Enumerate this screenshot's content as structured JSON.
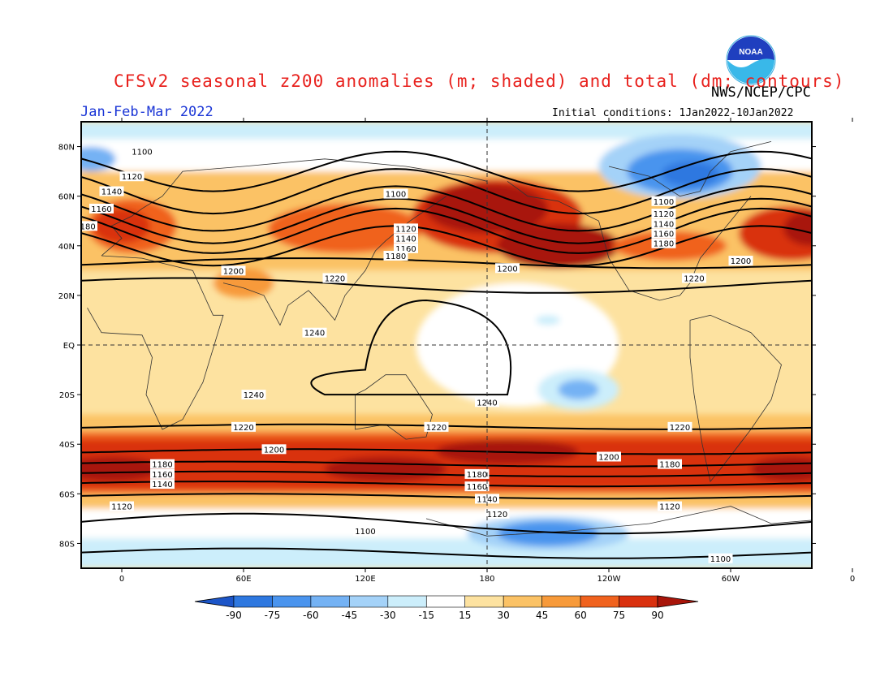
{
  "title": "CFSv2 seasonal z200 anomalies (m; shaded) and total (dm; contours)",
  "agency": "NWS/NCEP/CPC",
  "period": "Jan-Feb-Mar 2022",
  "initial_conditions": "Initial conditions: 1Jan2022-10Jan2022",
  "logo_text": "NOAA",
  "lat_labels": [
    "80N",
    "60N",
    "40N",
    "20N",
    "EQ",
    "20S",
    "40S",
    "60S",
    "80S"
  ],
  "lon_labels": [
    "0",
    "60E",
    "120E",
    "180",
    "120W",
    "60W",
    "0"
  ],
  "colorbar": {
    "ticks": [
      "-90",
      "-75",
      "-60",
      "-45",
      "-30",
      "-15",
      "15",
      "30",
      "45",
      "60",
      "75",
      "90"
    ],
    "colors": [
      "#1c55c8",
      "#2e78e0",
      "#4a94ee",
      "#74b2f4",
      "#a4d2f8",
      "#cceefb",
      "#ffffff",
      "#fde2a0",
      "#fbc265",
      "#f79a3a",
      "#f0621e",
      "#d9300e",
      "#a8150a"
    ]
  },
  "contour_labels": [
    "1100",
    "1120",
    "1140",
    "1160",
    "1180",
    "1200",
    "1220",
    "1240"
  ],
  "chart_data": {
    "type": "map",
    "variable": "z200",
    "shading": "anomalies (m)",
    "contours": "total (dm)",
    "contour_levels_dm": [
      1100,
      1120,
      1140,
      1160,
      1180,
      1200,
      1220,
      1240
    ],
    "anomaly_levels_m": [
      -90,
      -75,
      -60,
      -45,
      -30,
      -15,
      15,
      30,
      45,
      60,
      75,
      90
    ],
    "lat_range": [
      -90,
      90
    ],
    "lon_range": [
      -20,
      340
    ],
    "features": [
      {
        "label": "positive",
        "lon": -5,
        "lat": 48,
        "anom": 80
      },
      {
        "label": "positive",
        "lon": 175,
        "lat": 52,
        "anom": 85
      },
      {
        "label": "positive",
        "lon": 210,
        "lat": 40,
        "anom": 80
      },
      {
        "label": "positive",
        "lon": 325,
        "lat": 45,
        "anom": 80
      },
      {
        "label": "positive",
        "lon": 190,
        "lat": -43,
        "anom": 80
      },
      {
        "label": "positive",
        "lon": 120,
        "lat": -50,
        "anom": 70
      },
      {
        "label": "positive",
        "lon": 0,
        "lat": -50,
        "anom": 75
      },
      {
        "label": "negative",
        "lon": 275,
        "lat": 72,
        "anom": -70
      },
      {
        "label": "negative",
        "lon": 225,
        "lat": -18,
        "anom": -45
      },
      {
        "label": "negative",
        "lon": 205,
        "lat": -76,
        "anom": -65
      }
    ]
  }
}
